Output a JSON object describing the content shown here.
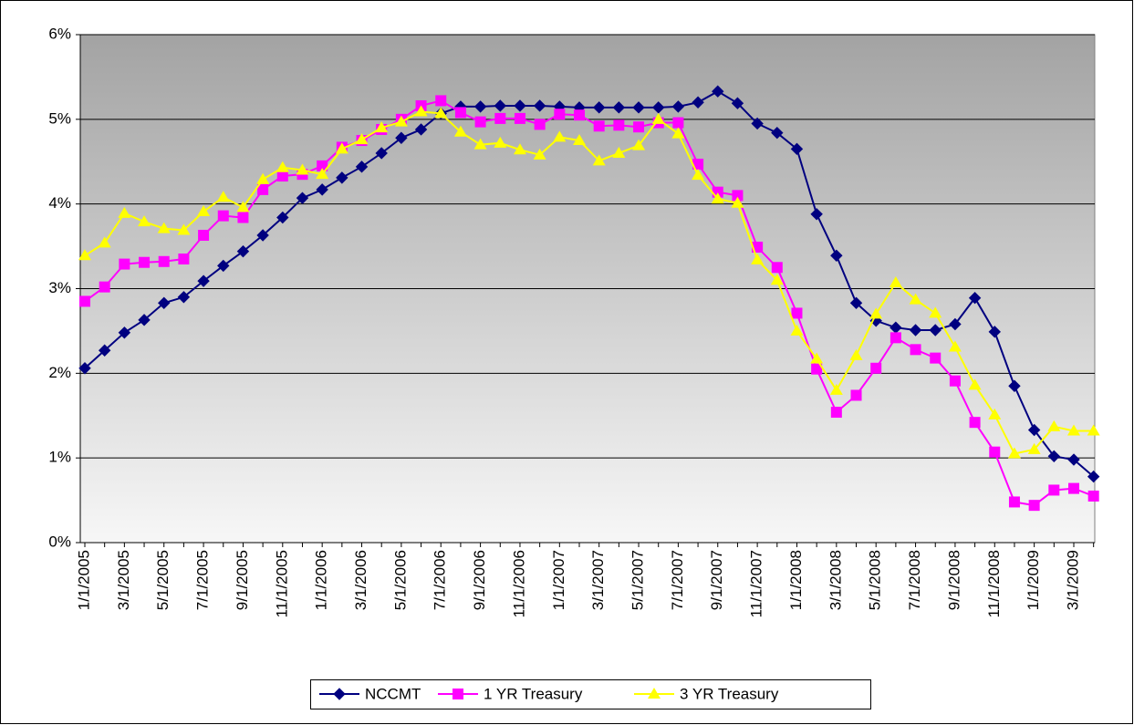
{
  "chart_data": {
    "type": "line",
    "categories": [
      "1/1/2005",
      null,
      "3/1/2005",
      null,
      "5/1/2005",
      null,
      "7/1/2005",
      null,
      "9/1/2005",
      null,
      "11/1/2005",
      null,
      "1/1/2006",
      null,
      "3/1/2006",
      null,
      "5/1/2006",
      null,
      "7/1/2006",
      null,
      "9/1/2006",
      null,
      "11/1/2006",
      null,
      "1/1/2007",
      null,
      "3/1/2007",
      null,
      "5/1/2007",
      null,
      "7/1/2007",
      null,
      "9/1/2007",
      null,
      "11/1/2007",
      null,
      "1/1/2008",
      null,
      "3/1/2008",
      null,
      "5/1/2008",
      null,
      "7/1/2008",
      null,
      "9/1/2008",
      null,
      "11/1/2008",
      null,
      "1/1/2009",
      null,
      "3/1/2009",
      null
    ],
    "series": [
      {
        "name": "NCCMT",
        "color": "#000080",
        "marker": "diamond",
        "values": [
          2.06,
          2.27,
          2.48,
          2.63,
          2.83,
          2.9,
          3.09,
          3.27,
          3.44,
          3.63,
          3.84,
          4.07,
          4.17,
          4.31,
          4.44,
          4.6,
          4.78,
          4.88,
          5.07,
          5.15,
          5.15,
          5.16,
          5.16,
          5.16,
          5.15,
          5.14,
          5.14,
          5.14,
          5.14,
          5.14,
          5.15,
          5.2,
          5.33,
          5.19,
          4.95,
          4.84,
          4.65,
          3.88,
          3.39,
          2.83,
          2.62,
          2.54,
          2.51,
          2.51,
          2.58,
          2.89,
          2.49,
          1.85,
          1.33,
          1.02,
          0.98,
          0.78
        ]
      },
      {
        "name": "1 YR Treasury",
        "color": "#ff00ff",
        "marker": "square",
        "values": [
          2.85,
          3.02,
          3.29,
          3.31,
          3.32,
          3.35,
          3.63,
          3.86,
          3.84,
          4.17,
          4.33,
          4.35,
          4.45,
          4.67,
          4.75,
          4.88,
          5.0,
          5.16,
          5.22,
          5.08,
          4.97,
          5.01,
          5.01,
          4.94,
          5.06,
          5.05,
          4.92,
          4.93,
          4.91,
          4.96,
          4.96,
          4.47,
          4.14,
          4.1,
          3.49,
          3.25,
          2.71,
          2.05,
          1.54,
          1.74,
          2.06,
          2.42,
          2.28,
          2.18,
          1.91,
          1.42,
          1.07,
          0.48,
          0.44,
          0.62,
          0.64,
          0.55
        ]
      },
      {
        "name": "3 YR Treasury",
        "color": "#ffff00",
        "marker": "triangle",
        "values": [
          3.39,
          3.54,
          3.89,
          3.79,
          3.71,
          3.69,
          3.91,
          4.08,
          3.96,
          4.29,
          4.43,
          4.4,
          4.35,
          4.65,
          4.76,
          4.9,
          4.97,
          5.09,
          5.07,
          4.85,
          4.7,
          4.72,
          4.64,
          4.58,
          4.79,
          4.75,
          4.51,
          4.6,
          4.69,
          5.0,
          4.83,
          4.34,
          4.06,
          4.01,
          3.34,
          3.1,
          2.5,
          2.17,
          1.8,
          2.21,
          2.7,
          3.07,
          2.87,
          2.71,
          2.31,
          1.86,
          1.51,
          1.05,
          1.1,
          1.37,
          1.32,
          1.32
        ]
      }
    ],
    "ylim": [
      0,
      6
    ],
    "yticks": [
      {
        "value": 0,
        "label": "0%"
      },
      {
        "value": 1,
        "label": "1%"
      },
      {
        "value": 2,
        "label": "2%"
      },
      {
        "value": 3,
        "label": "3%"
      },
      {
        "value": 4,
        "label": "4%"
      },
      {
        "value": 5,
        "label": "5%"
      },
      {
        "value": 6,
        "label": "6%"
      }
    ],
    "grid": true,
    "legend": "bottom"
  }
}
